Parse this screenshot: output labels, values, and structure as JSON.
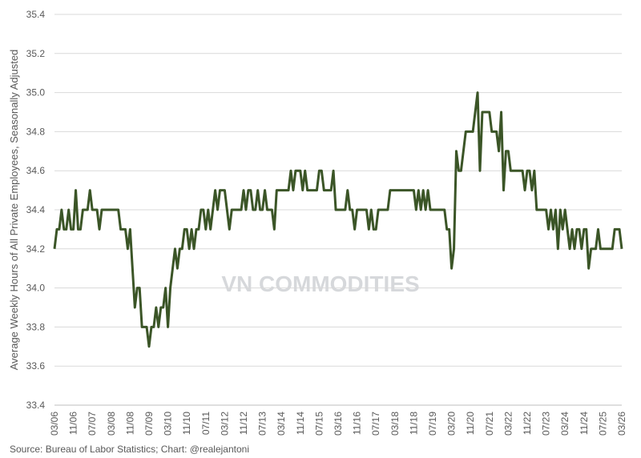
{
  "chart_data": {
    "type": "line",
    "y_label": "Average Weekly Hours of All Private Employees, Seasonally Adjusted",
    "source": "Source: Bureau of Labor Statistics; Chart: @realejantoni",
    "watermark": "VN COMMODITIES",
    "ylim": [
      33.4,
      35.4
    ],
    "yticks": [
      33.4,
      33.6,
      33.8,
      {
        "value": 34,
        "label": "34.0"
      },
      34.2,
      34.4,
      34.6,
      34.8,
      {
        "value": 35,
        "label": "35.0"
      },
      35.2,
      35.4
    ],
    "grid": true,
    "categories": [
      "03/06",
      null,
      null,
      null,
      null,
      null,
      null,
      null,
      "11/06",
      null,
      null,
      null,
      null,
      null,
      null,
      null,
      "07/07",
      null,
      null,
      null,
      null,
      null,
      null,
      null,
      "03/08",
      null,
      null,
      null,
      null,
      null,
      null,
      null,
      "11/08",
      null,
      null,
      null,
      null,
      null,
      null,
      null,
      "07/09",
      null,
      null,
      null,
      null,
      null,
      null,
      null,
      "03/10",
      null,
      null,
      null,
      null,
      null,
      null,
      null,
      "11/10",
      null,
      null,
      null,
      null,
      null,
      null,
      null,
      "07/11",
      null,
      null,
      null,
      null,
      null,
      null,
      null,
      "03/12",
      null,
      null,
      null,
      null,
      null,
      null,
      null,
      "11/12",
      null,
      null,
      null,
      null,
      null,
      null,
      null,
      "07/13",
      null,
      null,
      null,
      null,
      null,
      null,
      null,
      "03/14",
      null,
      null,
      null,
      null,
      null,
      null,
      null,
      "11/14",
      null,
      null,
      null,
      null,
      null,
      null,
      null,
      "07/15",
      null,
      null,
      null,
      null,
      null,
      null,
      null,
      "03/16",
      null,
      null,
      null,
      null,
      null,
      null,
      null,
      "11/16",
      null,
      null,
      null,
      null,
      null,
      null,
      null,
      "07/17",
      null,
      null,
      null,
      null,
      null,
      null,
      null,
      "03/18",
      null,
      null,
      null,
      null,
      null,
      null,
      null,
      "11/18",
      null,
      null,
      null,
      null,
      null,
      null,
      null,
      "07/19",
      null,
      null,
      null,
      null,
      null,
      null,
      null,
      "03/20",
      null,
      null,
      null,
      null,
      null,
      null,
      null,
      "11/20",
      null,
      null,
      null,
      null,
      null,
      null,
      null,
      "07/21",
      null,
      null,
      null,
      null,
      null,
      null,
      null,
      "03/22",
      null,
      null,
      null,
      null,
      null,
      null,
      null,
      "11/22",
      null,
      null,
      null,
      null,
      null,
      null,
      null,
      "07/23",
      null,
      null,
      null,
      null,
      null,
      null,
      null,
      "03/24",
      null,
      null,
      null,
      null,
      null,
      null,
      null,
      "11/24",
      null,
      null,
      null,
      null,
      null,
      null,
      null,
      "07/25",
      null,
      null,
      null,
      null,
      null,
      null,
      null,
      "03/26"
    ],
    "series": [
      {
        "color": "#3b5527",
        "values": [
          34.2,
          34.3,
          34.3,
          34.4,
          34.3,
          34.3,
          34.4,
          34.3,
          34.3,
          34.5,
          34.3,
          34.3,
          34.4,
          34.4,
          34.4,
          34.5,
          34.4,
          34.4,
          34.4,
          34.3,
          34.4,
          34.4,
          34.4,
          34.4,
          34.4,
          34.4,
          34.4,
          34.4,
          34.3,
          34.3,
          34.3,
          34.2,
          34.3,
          34.1,
          33.9,
          34.0,
          34.0,
          33.8,
          33.8,
          33.8,
          33.7,
          33.8,
          33.8,
          33.9,
          33.8,
          33.9,
          33.9,
          34.0,
          33.8,
          34.0,
          34.1,
          34.2,
          34.1,
          34.2,
          34.2,
          34.3,
          34.3,
          34.2,
          34.3,
          34.2,
          34.3,
          34.3,
          34.4,
          34.4,
          34.3,
          34.4,
          34.3,
          34.4,
          34.5,
          34.4,
          34.5,
          34.5,
          34.5,
          34.4,
          34.3,
          34.4,
          34.4,
          34.4,
          34.4,
          34.4,
          34.5,
          34.4,
          34.5,
          34.5,
          34.4,
          34.4,
          34.5,
          34.4,
          34.4,
          34.5,
          34.4,
          34.4,
          34.4,
          34.3,
          34.5,
          34.5,
          34.5,
          34.5,
          34.5,
          34.5,
          34.6,
          34.5,
          34.6,
          34.6,
          34.6,
          34.5,
          34.6,
          34.5,
          34.5,
          34.5,
          34.5,
          34.5,
          34.6,
          34.6,
          34.5,
          34.5,
          34.5,
          34.5,
          34.6,
          34.4,
          34.4,
          34.4,
          34.4,
          34.4,
          34.5,
          34.4,
          34.4,
          34.3,
          34.4,
          34.4,
          34.4,
          34.4,
          34.4,
          34.3,
          34.4,
          34.3,
          34.3,
          34.4,
          34.4,
          34.4,
          34.4,
          34.4,
          34.5,
          34.5,
          34.5,
          34.5,
          34.5,
          34.5,
          34.5,
          34.5,
          34.5,
          34.5,
          34.5,
          34.4,
          34.5,
          34.4,
          34.5,
          34.4,
          34.5,
          34.4,
          34.4,
          34.4,
          34.4,
          34.4,
          34.4,
          34.4,
          34.3,
          34.3,
          34.1,
          34.2,
          34.7,
          34.6,
          34.6,
          34.7,
          34.8,
          34.8,
          34.8,
          34.8,
          34.9,
          35.0,
          34.6,
          34.9,
          34.9,
          34.9,
          34.9,
          34.8,
          34.8,
          34.8,
          34.7,
          34.9,
          34.5,
          34.7,
          34.7,
          34.6,
          34.6,
          34.6,
          34.6,
          34.6,
          34.6,
          34.5,
          34.6,
          34.6,
          34.5,
          34.6,
          34.4,
          34.4,
          34.4,
          34.4,
          34.4,
          34.3,
          34.4,
          34.3,
          34.4,
          34.2,
          34.4,
          34.3,
          34.4,
          34.3,
          34.2,
          34.3,
          34.2,
          34.3,
          34.3,
          34.2,
          34.3,
          34.3,
          34.1,
          34.2,
          34.2,
          34.2,
          34.3,
          34.2,
          34.2,
          34.2,
          34.2,
          34.2,
          34.2,
          34.3,
          34.3,
          34.3,
          34.2
        ]
      }
    ]
  }
}
